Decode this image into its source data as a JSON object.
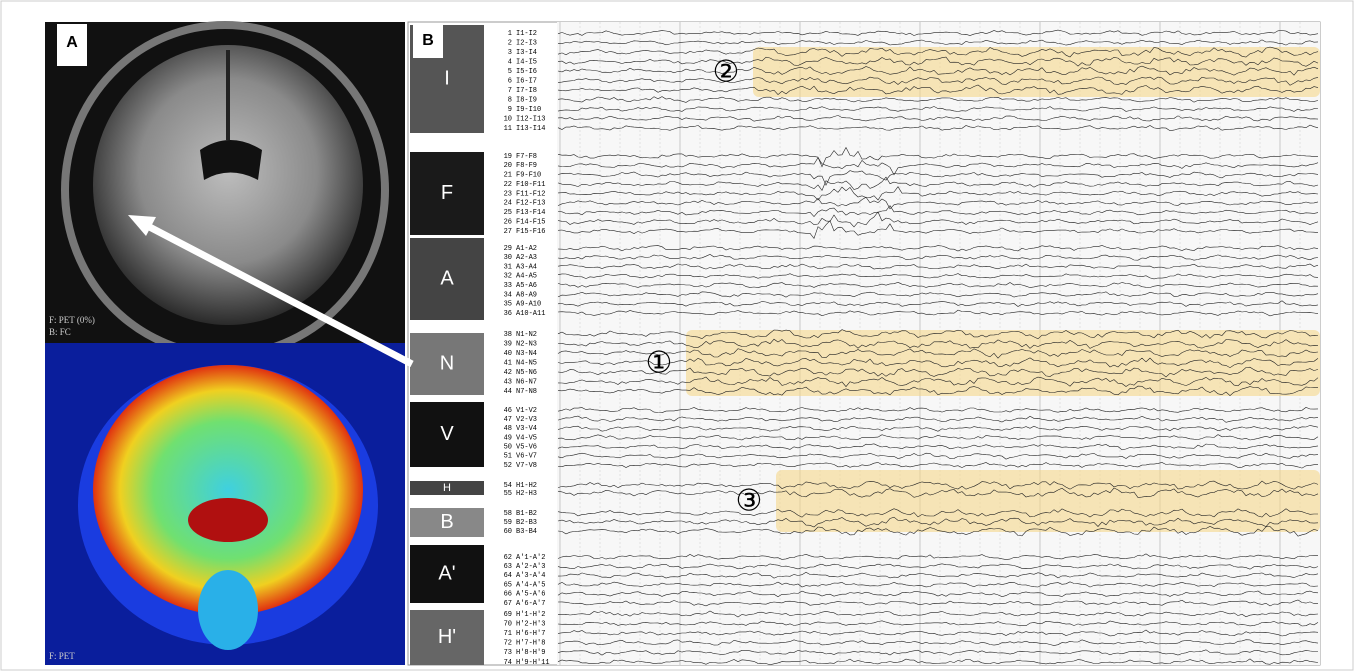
{
  "panel_a": {
    "label": "A",
    "mri_labels": [
      "F: PET (0%)",
      "B: FC"
    ],
    "pet_label": "F: PET"
  },
  "panel_b": {
    "label": "B",
    "groups": [
      {
        "label": "I",
        "channels": [
          [
            1,
            "I1-I2"
          ],
          [
            2,
            "I2-I3"
          ],
          [
            3,
            "I3-I4"
          ],
          [
            4,
            "I4-I5"
          ],
          [
            5,
            "I5-I6"
          ],
          [
            6,
            "I6-I7"
          ],
          [
            7,
            "I7-I8"
          ],
          [
            8,
            "I8-I9"
          ],
          [
            9,
            "I9-I10"
          ],
          [
            10,
            "I12-I13"
          ],
          [
            11,
            "I13-I14"
          ]
        ]
      },
      {
        "label": "F",
        "channels": [
          [
            19,
            "F7-F8"
          ],
          [
            20,
            "F8-F9"
          ],
          [
            21,
            "F9-F10"
          ],
          [
            22,
            "F10-F11"
          ],
          [
            23,
            "F11-F12"
          ],
          [
            24,
            "F12-F13"
          ],
          [
            25,
            "F13-F14"
          ],
          [
            26,
            "F14-F15"
          ],
          [
            27,
            "F15-F16"
          ]
        ]
      },
      {
        "label": "A",
        "channels": [
          [
            29,
            "A1-A2"
          ],
          [
            30,
            "A2-A3"
          ],
          [
            31,
            "A3-A4"
          ],
          [
            32,
            "A4-A5"
          ],
          [
            33,
            "A5-A6"
          ],
          [
            34,
            "A8-A9"
          ],
          [
            35,
            "A9-A10"
          ],
          [
            36,
            "A10-A11"
          ]
        ]
      },
      {
        "label": "N",
        "channels": [
          [
            38,
            "N1-N2"
          ],
          [
            39,
            "N2-N3"
          ],
          [
            40,
            "N3-N4"
          ],
          [
            41,
            "N4-N5"
          ],
          [
            42,
            "N5-N6"
          ],
          [
            43,
            "N6-N7"
          ],
          [
            44,
            "N7-N8"
          ]
        ]
      },
      {
        "label": "V",
        "channels": [
          [
            46,
            "V1-V2"
          ],
          [
            47,
            "V2-V3"
          ],
          [
            48,
            "V3-V4"
          ],
          [
            49,
            "V4-V5"
          ],
          [
            50,
            "V5-V6"
          ],
          [
            51,
            "V6-V7"
          ],
          [
            52,
            "V7-V8"
          ]
        ]
      },
      {
        "label": "H",
        "channels": [
          [
            54,
            "H1-H2"
          ],
          [
            55,
            "H2-H3"
          ]
        ]
      },
      {
        "label": "B",
        "channels": [
          [
            58,
            "B1-B2"
          ],
          [
            59,
            "B2-B3"
          ],
          [
            60,
            "B3-B4"
          ]
        ]
      },
      {
        "label": "A'",
        "channels": [
          [
            62,
            "A'1-A'2"
          ],
          [
            63,
            "A'2-A'3"
          ],
          [
            64,
            "A'3-A'4"
          ],
          [
            65,
            "A'4-A'5"
          ],
          [
            66,
            "A'5-A'6"
          ],
          [
            67,
            "A'6-A'7"
          ]
        ]
      },
      {
        "label": "H'",
        "channels": [
          [
            69,
            "H'1-H'2"
          ],
          [
            70,
            "H'2-H'3"
          ],
          [
            71,
            "H'6-H'7"
          ],
          [
            72,
            "H'7-H'8"
          ],
          [
            73,
            "H'8-H'9"
          ],
          [
            74,
            "H'9-H'11"
          ]
        ]
      }
    ],
    "markers": [
      "②",
      "①",
      "③"
    ]
  }
}
